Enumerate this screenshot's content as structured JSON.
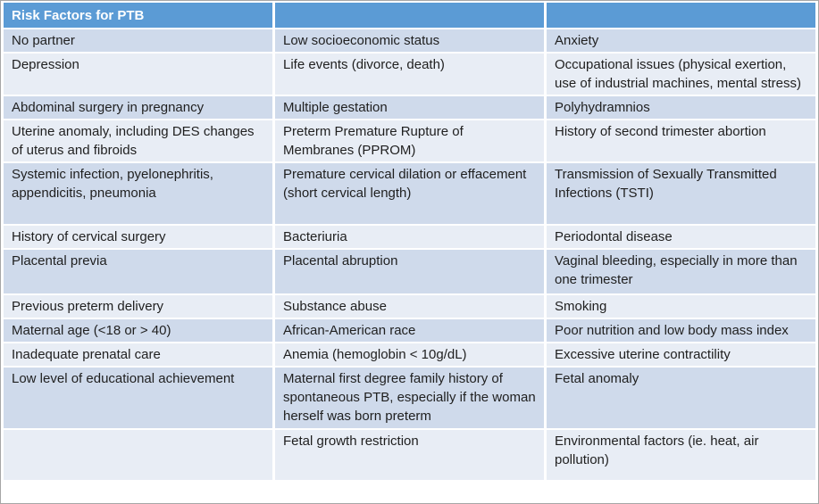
{
  "table": {
    "title": "Risk Factors for PTB",
    "columns": 3,
    "rows": [
      [
        "No partner",
        "Low socioeconomic status",
        "Anxiety"
      ],
      [
        "Depression",
        "Life events (divorce, death)",
        "Occupational issues (physical exertion, use of industrial machines, mental stress)"
      ],
      [
        "Abdominal surgery in pregnancy",
        "Multiple gestation",
        "Polyhydramnios"
      ],
      [
        "Uterine anomaly, including DES changes of uterus and fibroids",
        "Preterm Premature Rupture of Membranes (PPROM)",
        "History of second trimester abortion"
      ],
      [
        "Systemic infection, pyelonephritis, appendicitis, pneumonia",
        "Premature cervical dilation or effacement (short cervical length)",
        "Transmission of Sexually Transmitted Infections (TSTI)"
      ],
      [
        "History of cervical surgery",
        "Bacteriuria",
        "Periodontal disease"
      ],
      [
        "Placental previa",
        "Placental abruption",
        "Vaginal bleeding, especially in more than one trimester"
      ],
      [
        "Previous preterm delivery",
        "Substance abuse",
        "Smoking"
      ],
      [
        "Maternal age (<18 or > 40)",
        "African-American race",
        "Poor nutrition and low body mass index"
      ],
      [
        "Inadequate prenatal care",
        "Anemia (hemoglobin < 10g/dL)",
        "Excessive uterine contractility"
      ],
      [
        "Low level of educational achievement",
        "Maternal first degree family history of spontaneous PTB, especially if the woman herself was born preterm",
        "Fetal anomaly"
      ],
      [
        "",
        "Fetal growth restriction",
        "Environmental factors (ie. heat, air pollution)"
      ]
    ],
    "colors": {
      "header_bg": "#5b9bd5",
      "band_dark": "#cfdaeb",
      "band_light": "#e8edf5",
      "header_text": "#ffffff",
      "body_text": "#1f1f1f"
    }
  }
}
